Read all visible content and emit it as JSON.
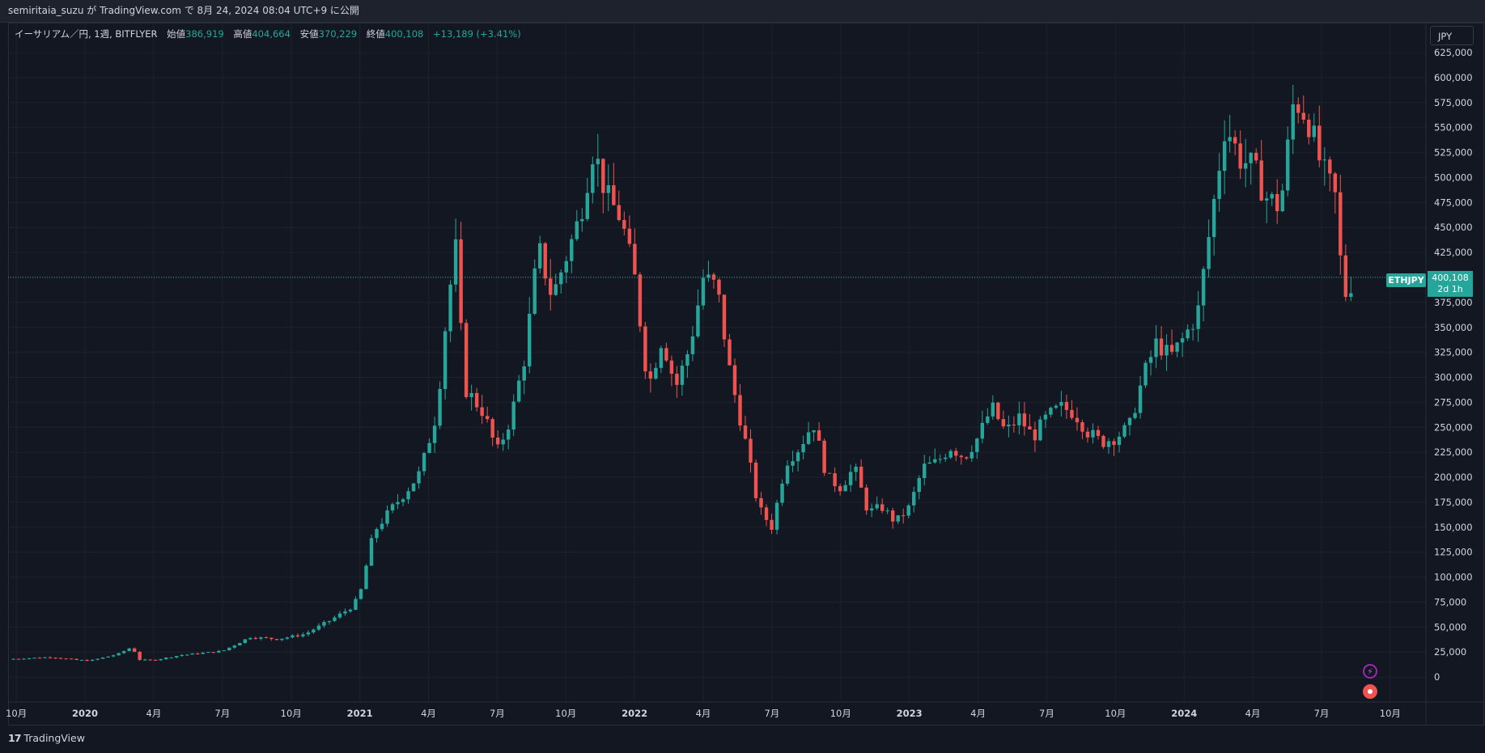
{
  "header": {
    "publish_line": "semiritaia_suzu が TradingView.com で 8月 24, 2024 08:04 UTC+9 に公開"
  },
  "legend": {
    "symbol_info": "イーサリアム／円, 1週, BITFLYER",
    "open_label": "始値",
    "open": "386,919",
    "high_label": "高値",
    "high": "404,664",
    "low_label": "安値",
    "low": "370,229",
    "close_label": "終値",
    "close": "400,108",
    "change": "+13,189 (+3.41%)"
  },
  "price_axis": {
    "currency_button": "JPY",
    "symbol_tag": "ETHJPY",
    "last_price": "400,108",
    "countdown": "2d 1h"
  },
  "footer": {
    "brand": "TradingView",
    "brand_mark": "17"
  },
  "colors": {
    "up": "#26a69a",
    "down": "#ef5350",
    "background": "#131722",
    "grid": "#1e222d"
  },
  "icons": [
    "lightning-icon",
    "record-icon",
    "tradingview-logo-icon"
  ],
  "chart_data": {
    "type": "candlestick",
    "title": "イーサリアム／円, 1週, BITFLYER",
    "interval": "1週",
    "y_ticks": [
      625000,
      600000,
      575000,
      550000,
      525000,
      500000,
      475000,
      450000,
      425000,
      400000,
      375000,
      350000,
      325000,
      300000,
      275000,
      250000,
      225000,
      200000,
      175000,
      150000,
      125000,
      100000,
      75000,
      50000,
      25000,
      0
    ],
    "ylim": [
      -25000,
      655000
    ],
    "x_ticks": [
      {
        "label": "10月",
        "t": 2019.75
      },
      {
        "label": "2020",
        "t": 2020.0
      },
      {
        "label": "4月",
        "t": 2020.25
      },
      {
        "label": "7月",
        "t": 2020.5
      },
      {
        "label": "10月",
        "t": 2020.75
      },
      {
        "label": "2021",
        "t": 2021.0
      },
      {
        "label": "4月",
        "t": 2021.25
      },
      {
        "label": "7月",
        "t": 2021.5
      },
      {
        "label": "10月",
        "t": 2021.75
      },
      {
        "label": "2022",
        "t": 2022.0
      },
      {
        "label": "4月",
        "t": 2022.25
      },
      {
        "label": "7月",
        "t": 2022.5
      },
      {
        "label": "10月",
        "t": 2022.75
      },
      {
        "label": "2023",
        "t": 2023.0
      },
      {
        "label": "4月",
        "t": 2023.25
      },
      {
        "label": "7月",
        "t": 2023.5
      },
      {
        "label": "10月",
        "t": 2023.75
      },
      {
        "label": "2024",
        "t": 2024.0
      },
      {
        "label": "4月",
        "t": 2024.25
      },
      {
        "label": "7月",
        "t": 2024.5
      },
      {
        "label": "10月",
        "t": 2024.75
      }
    ],
    "xlim": [
      2019.72,
      2024.88
    ],
    "last_close": 400108,
    "close_anchors": [
      [
        2019.72,
        18000
      ],
      [
        2019.88,
        20000
      ],
      [
        2019.97,
        17000
      ],
      [
        2020.02,
        16500
      ],
      [
        2020.12,
        23000
      ],
      [
        2020.17,
        30000
      ],
      [
        2020.2,
        17000
      ],
      [
        2020.25,
        17000
      ],
      [
        2020.35,
        22000
      ],
      [
        2020.5,
        26000
      ],
      [
        2020.6,
        40000
      ],
      [
        2020.7,
        38000
      ],
      [
        2020.8,
        43000
      ],
      [
        2020.9,
        58000
      ],
      [
        2020.97,
        70000
      ],
      [
        2021.0,
        82000
      ],
      [
        2021.05,
        145000
      ],
      [
        2021.12,
        170000
      ],
      [
        2021.18,
        190000
      ],
      [
        2021.22,
        205000
      ],
      [
        2021.28,
        265000
      ],
      [
        2021.32,
        375000
      ],
      [
        2021.35,
        430000
      ],
      [
        2021.38,
        290000
      ],
      [
        2021.45,
        265000
      ],
      [
        2021.5,
        225000
      ],
      [
        2021.55,
        260000
      ],
      [
        2021.6,
        320000
      ],
      [
        2021.65,
        430000
      ],
      [
        2021.7,
        380000
      ],
      [
        2021.75,
        420000
      ],
      [
        2021.8,
        460000
      ],
      [
        2021.85,
        530000
      ],
      [
        2021.9,
        480000
      ],
      [
        2021.95,
        460000
      ],
      [
        2022.0,
        400000
      ],
      [
        2022.05,
        290000
      ],
      [
        2022.1,
        340000
      ],
      [
        2022.15,
        290000
      ],
      [
        2022.2,
        330000
      ],
      [
        2022.25,
        400000
      ],
      [
        2022.3,
        390000
      ],
      [
        2022.35,
        300000
      ],
      [
        2022.4,
        240000
      ],
      [
        2022.45,
        170000
      ],
      [
        2022.5,
        150000
      ],
      [
        2022.55,
        215000
      ],
      [
        2022.6,
        230000
      ],
      [
        2022.65,
        255000
      ],
      [
        2022.7,
        200000
      ],
      [
        2022.75,
        190000
      ],
      [
        2022.8,
        210000
      ],
      [
        2022.85,
        165000
      ],
      [
        2022.9,
        170000
      ],
      [
        2022.95,
        155000
      ],
      [
        2023.0,
        170000
      ],
      [
        2023.05,
        210000
      ],
      [
        2023.1,
        215000
      ],
      [
        2023.15,
        230000
      ],
      [
        2023.2,
        220000
      ],
      [
        2023.25,
        240000
      ],
      [
        2023.3,
        270000
      ],
      [
        2023.35,
        245000
      ],
      [
        2023.4,
        260000
      ],
      [
        2023.45,
        240000
      ],
      [
        2023.5,
        260000
      ],
      [
        2023.55,
        270000
      ],
      [
        2023.6,
        265000
      ],
      [
        2023.65,
        245000
      ],
      [
        2023.7,
        235000
      ],
      [
        2023.75,
        240000
      ],
      [
        2023.8,
        250000
      ],
      [
        2023.85,
        300000
      ],
      [
        2023.9,
        335000
      ],
      [
        2023.95,
        320000
      ],
      [
        2024.0,
        340000
      ],
      [
        2024.05,
        365000
      ],
      [
        2024.1,
        460000
      ],
      [
        2024.15,
        555000
      ],
      [
        2024.2,
        520000
      ],
      [
        2024.25,
        510000
      ],
      [
        2024.3,
        480000
      ],
      [
        2024.35,
        470000
      ],
      [
        2024.4,
        580000
      ],
      [
        2024.45,
        560000
      ],
      [
        2024.5,
        510000
      ],
      [
        2024.55,
        480000
      ],
      [
        2024.58,
        380000
      ],
      [
        2024.62,
        400108
      ]
    ]
  }
}
